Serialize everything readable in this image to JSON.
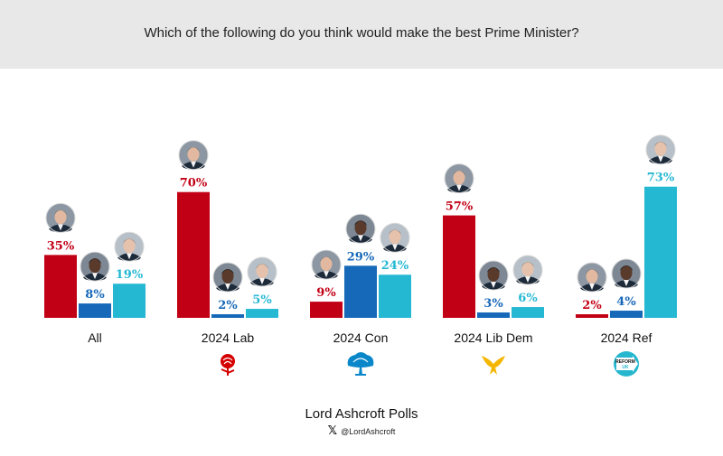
{
  "header": {
    "title": "Which of the following do you think would make the best Prime Minister?"
  },
  "footer": {
    "source": "Lord Ashcroft Polls",
    "x_icon": "x-logo-icon",
    "handle": "@LordAshcroft"
  },
  "colors": {
    "starmer": "#c20015",
    "badenoch": "#1668b8",
    "farage": "#25b8d3"
  },
  "chart_data": {
    "type": "bar",
    "title": "Which of the following do you think would make the best Prime Minister?",
    "categories": [
      "All",
      "2024 Lab",
      "2024 Con",
      "2024 Lib Dem",
      "2024 Ref"
    ],
    "category_icons": [
      "",
      "labour-rose-icon",
      "conservative-tree-icon",
      "libdem-bird-icon",
      "reform-uk-logo-icon"
    ],
    "series": [
      {
        "icon": "starmer-portrait-icon",
        "color": "#c20015",
        "values": [
          35,
          70,
          9,
          57,
          2
        ],
        "labels": [
          "35%",
          "70%",
          "9%",
          "57%",
          "2%"
        ]
      },
      {
        "icon": "badenoch-portrait-icon",
        "color": "#1668b8",
        "values": [
          8,
          2,
          29,
          3,
          4
        ],
        "labels": [
          "8%",
          "2%",
          "29%",
          "3%",
          "4%"
        ]
      },
      {
        "icon": "farage-portrait-icon",
        "color": "#25b8d3",
        "values": [
          19,
          5,
          24,
          6,
          73
        ],
        "labels": [
          "19%",
          "5%",
          "24%",
          "6%",
          "73%"
        ]
      }
    ],
    "ylim": [
      0,
      80
    ],
    "grid": false,
    "legend": "none"
  }
}
